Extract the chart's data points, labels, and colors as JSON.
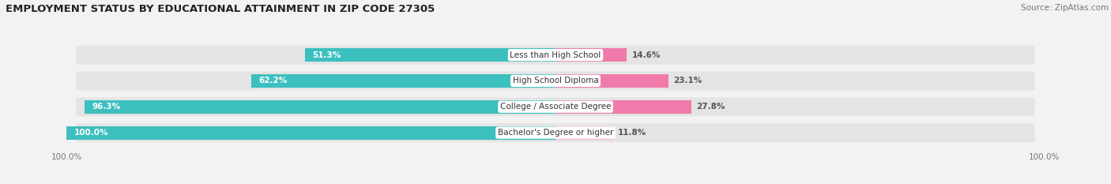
{
  "title": "EMPLOYMENT STATUS BY EDUCATIONAL ATTAINMENT IN ZIP CODE 27305",
  "source": "Source: ZipAtlas.com",
  "categories": [
    "Less than High School",
    "High School Diploma",
    "College / Associate Degree",
    "Bachelor's Degree or higher"
  ],
  "in_labor_force": [
    51.3,
    62.2,
    96.3,
    100.0
  ],
  "unemployed": [
    14.6,
    23.1,
    27.8,
    11.8
  ],
  "color_labor": "#3cbfbf",
  "unemployed_colors": [
    "#f07aaa",
    "#f07aaa",
    "#f07aaa",
    "#f9b8d0"
  ],
  "bg_color": "#f2f2f2",
  "row_bg_color": "#e4e4e4",
  "title_fontsize": 9.5,
  "bar_label_fontsize": 7.5,
  "category_fontsize": 7.5,
  "legend_fontsize": 8,
  "source_fontsize": 7.5,
  "left_axis_label": "100.0%",
  "right_axis_label": "100.0%"
}
